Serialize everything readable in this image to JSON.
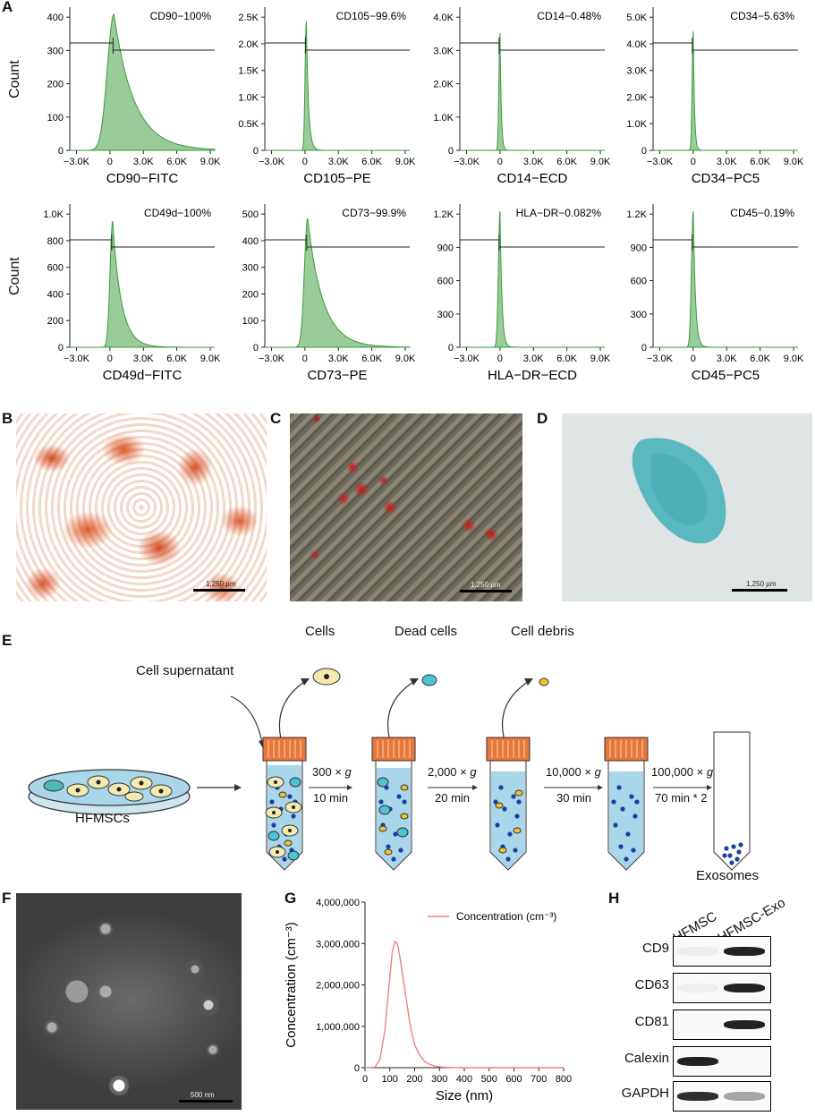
{
  "panels": {
    "A": "A",
    "B": "B",
    "C": "C",
    "D": "D",
    "E": "E",
    "F": "F",
    "G": "G",
    "H": "H"
  },
  "flow": {
    "y_label": "Count",
    "x_ticks": [
      "−3.0K",
      "0",
      "3.0K",
      "6.0K",
      "9.0K"
    ],
    "histograms": [
      {
        "marker": "CD90−100%",
        "xlabel": "CD90−FITC",
        "yticks": [
          "0",
          "100",
          "200",
          "300",
          "400"
        ],
        "peak": 0.12,
        "width": 0.18,
        "tail": 0.6,
        "height": 0.95
      },
      {
        "marker": "CD105−99.6%",
        "xlabel": "CD105−PE",
        "yticks": [
          "0",
          "0.5K",
          "1.0K",
          "1.5K",
          "2.0K",
          "2.5K"
        ],
        "peak": 0.04,
        "width": 0.02,
        "tail": 0.05,
        "height": 0.9
      },
      {
        "marker": "CD14−0.48%",
        "xlabel": "CD14−ECD",
        "yticks": [
          "0",
          "1.0K",
          "2.0K",
          "3.0K",
          "4.0K"
        ],
        "peak": 0,
        "width": 0.015,
        "tail": 0.02,
        "height": 0.82
      },
      {
        "marker": "CD34−5.63%",
        "xlabel": "CD34−PC5",
        "yticks": [
          "0",
          "1.0K",
          "2.0K",
          "3.0K",
          "4.0K",
          "5.0K"
        ],
        "peak": 0,
        "width": 0.015,
        "tail": 0.02,
        "height": 0.83
      },
      {
        "marker": "CD49d−100%",
        "xlabel": "CD49d−FITC",
        "yticks": [
          "0",
          "200",
          "400",
          "600",
          "800",
          "1.0K"
        ],
        "peak": 0.08,
        "width": 0.06,
        "tail": 0.25,
        "height": 0.88
      },
      {
        "marker": "CD73−99.9%",
        "xlabel": "CD73−PE",
        "yticks": [
          "0",
          "100",
          "200",
          "300",
          "400",
          "500"
        ],
        "peak": 0.08,
        "width": 0.08,
        "tail": 0.45,
        "height": 0.9
      },
      {
        "marker": "HLA−DR−0.082%",
        "xlabel": "HLA−DR−ECD",
        "yticks": [
          "0",
          "300",
          "600",
          "900",
          "1.2K"
        ],
        "peak": 0,
        "width": 0.03,
        "tail": 0.04,
        "height": 0.95
      },
      {
        "marker": "CD45−0.19%",
        "xlabel": "CD45−PC5",
        "yticks": [
          "0",
          "300",
          "600",
          "900",
          "1.2K"
        ],
        "peak": 0,
        "width": 0.035,
        "tail": 0.05,
        "height": 0.95
      }
    ]
  },
  "micrographs": {
    "scale_B": "1,250 µm",
    "scale_C": "1,250 µm",
    "scale_D": "1,250 µm",
    "scale_F": "500 nm"
  },
  "schematic": {
    "cell_supernatant": "Cell supernatant",
    "cells": "Cells",
    "dead_cells": "Dead cells",
    "cell_debris": "Cell debris",
    "hfmscs": "HFMSCs",
    "exosomes": "Exosomes",
    "steps": [
      {
        "speed": "300 × ",
        "g": "g",
        "time": "10 min"
      },
      {
        "speed": "2,000 × ",
        "g": "g",
        "time": "20 min"
      },
      {
        "speed": "10,000 × ",
        "g": "g",
        "time": "30 min"
      },
      {
        "speed": "100,000 × ",
        "g": "g",
        "time": "70 min * 2"
      }
    ]
  },
  "chart_data": {
    "type": "line",
    "ylabel": "Concentration (cm⁻³)",
    "xlabel": "Size (nm)",
    "legend": "Concentration (cm⁻³)",
    "xlim": [
      0,
      800
    ],
    "ylim": [
      0,
      4000000
    ],
    "x_ticks": [
      "0",
      "100",
      "200",
      "300",
      "400",
      "500",
      "600",
      "700",
      "800"
    ],
    "y_ticks": [
      "0",
      "1,000,000",
      "2,000,000",
      "3,000,000",
      "4,000,000"
    ],
    "color": "#f08080",
    "x": [
      0,
      40,
      60,
      80,
      100,
      110,
      120,
      130,
      140,
      150,
      160,
      170,
      180,
      190,
      200,
      220,
      240,
      260,
      280,
      300,
      330,
      360,
      400,
      800
    ],
    "y": [
      0,
      10000,
      200000,
      900000,
      2200000,
      2800000,
      3050000,
      3000000,
      2700000,
      2300000,
      1900000,
      1500000,
      1100000,
      800000,
      550000,
      300000,
      150000,
      80000,
      40000,
      20000,
      8000,
      3000,
      0,
      0
    ]
  },
  "western": {
    "columns": [
      "HFMSC",
      "HFMSC-Exo"
    ],
    "rows": [
      {
        "label": "CD9",
        "left": 0.05,
        "right": 0.9
      },
      {
        "label": "CD63",
        "left": 0.05,
        "right": 0.9
      },
      {
        "label": "CD81",
        "left": 0.0,
        "right": 0.9
      },
      {
        "label": "Calexin",
        "left": 0.9,
        "right": 0.0
      },
      {
        "label": "GAPDH",
        "left": 0.85,
        "right": 0.35
      }
    ]
  }
}
